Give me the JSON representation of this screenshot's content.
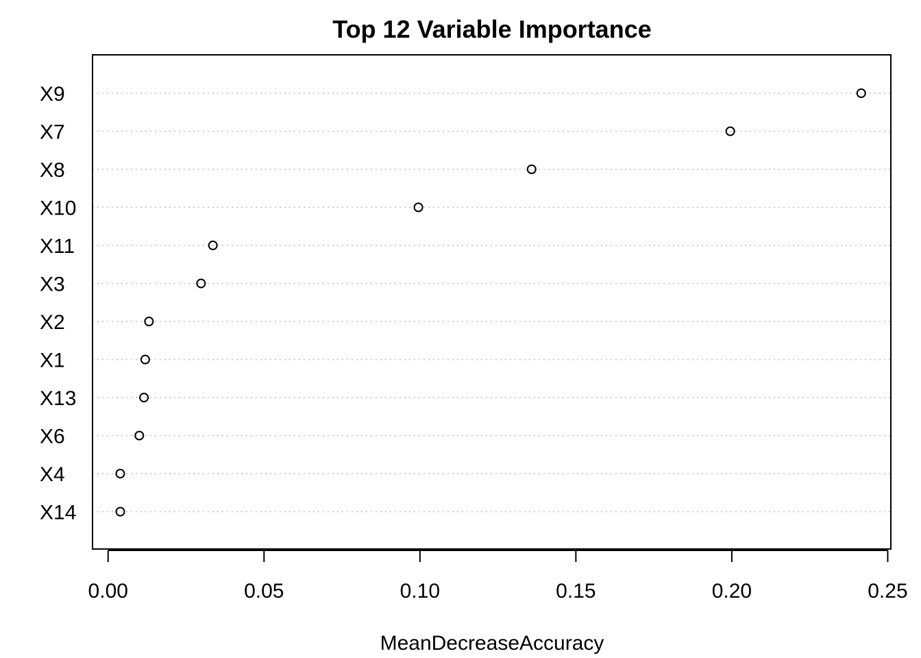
{
  "chart_data": {
    "type": "scatter",
    "title": "Top 12 Variable Importance",
    "xlabel": "MeanDecreaseAccuracy",
    "ylabel": "",
    "xlim": [
      -0.005,
      0.251
    ],
    "x_ticks": [
      "0.00",
      "0.05",
      "0.10",
      "0.15",
      "0.20",
      "0.25"
    ],
    "grid": "dotted horizontal",
    "legend": "none",
    "categories": [
      "X9",
      "X7",
      "X8",
      "X10",
      "X11",
      "X3",
      "X2",
      "X1",
      "X13",
      "X6",
      "X4",
      "X14"
    ],
    "values": [
      0.2415,
      0.1995,
      0.1358,
      0.0995,
      0.0336,
      0.0298,
      0.0131,
      0.0119,
      0.0115,
      0.01,
      0.0039,
      0.0039
    ]
  }
}
